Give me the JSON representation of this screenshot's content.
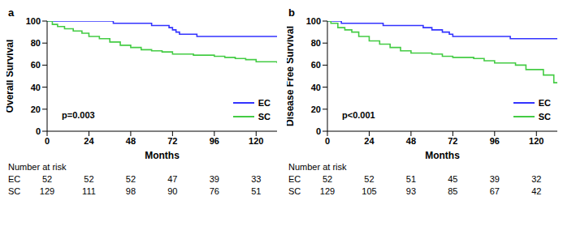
{
  "chart_data": [
    {
      "type": "line",
      "panel_label": "a",
      "y_label": "Overall Survival",
      "x_label": "Months",
      "annotation": "p=0.003",
      "xlim": [
        0,
        132
      ],
      "xticks": [
        0,
        24,
        48,
        72,
        96,
        120
      ],
      "ylim": [
        0,
        100
      ],
      "yticks": [
        0,
        20,
        40,
        60,
        80,
        100
      ],
      "grid": false,
      "legend": "lower right",
      "line_style": "step",
      "series": [
        {
          "name": "EC",
          "color": "#3333ff",
          "x": [
            0,
            38,
            60,
            70,
            72,
            74,
            76,
            86,
            132
          ],
          "values": [
            100,
            98,
            96,
            94,
            92,
            90,
            88,
            86,
            86
          ]
        },
        {
          "name": "SC",
          "color": "#44cc44",
          "x": [
            0,
            3,
            6,
            10,
            15,
            20,
            24,
            30,
            36,
            42,
            48,
            54,
            60,
            66,
            72,
            84,
            96,
            102,
            108,
            114,
            120,
            132
          ],
          "values": [
            100,
            97,
            95,
            93,
            91,
            89,
            86,
            84,
            81,
            78,
            76,
            74,
            73,
            72,
            70,
            69,
            68,
            67,
            66,
            65,
            63,
            62
          ]
        }
      ],
      "at_risk": {
        "title": "Number at risk",
        "rows": [
          {
            "name": "EC",
            "values": [
              52,
              52,
              52,
              47,
              39,
              33
            ]
          },
          {
            "name": "SC",
            "values": [
              129,
              111,
              98,
              90,
              76,
              51
            ]
          }
        ]
      }
    },
    {
      "type": "line",
      "panel_label": "b",
      "y_label": "Disease Free Survival",
      "x_label": "Months",
      "annotation": "p<0.001",
      "xlim": [
        0,
        132
      ],
      "xticks": [
        0,
        24,
        48,
        72,
        96,
        120
      ],
      "ylim": [
        0,
        100
      ],
      "yticks": [
        0,
        20,
        40,
        60,
        80,
        100
      ],
      "grid": false,
      "legend": "lower right",
      "line_style": "step",
      "series": [
        {
          "name": "EC",
          "color": "#3333ff",
          "x": [
            0,
            8,
            32,
            55,
            60,
            66,
            70,
            72,
            105,
            132
          ],
          "values": [
            100,
            98,
            96,
            94,
            92,
            90,
            88,
            86,
            84,
            84
          ]
        },
        {
          "name": "SC",
          "color": "#44cc44",
          "x": [
            0,
            2,
            6,
            10,
            14,
            18,
            24,
            30,
            36,
            42,
            48,
            60,
            66,
            72,
            84,
            90,
            96,
            108,
            114,
            124,
            130,
            132
          ],
          "values": [
            100,
            98,
            94,
            92,
            90,
            86,
            82,
            79,
            76,
            73,
            71,
            70,
            68,
            67,
            66,
            64,
            62,
            60,
            56,
            51,
            44,
            44
          ]
        }
      ],
      "at_risk": {
        "title": "Number at risk",
        "rows": [
          {
            "name": "EC",
            "values": [
              52,
              52,
              51,
              45,
              39,
              32
            ]
          },
          {
            "name": "SC",
            "values": [
              129,
              105,
              93,
              85,
              67,
              42
            ]
          }
        ]
      }
    }
  ]
}
